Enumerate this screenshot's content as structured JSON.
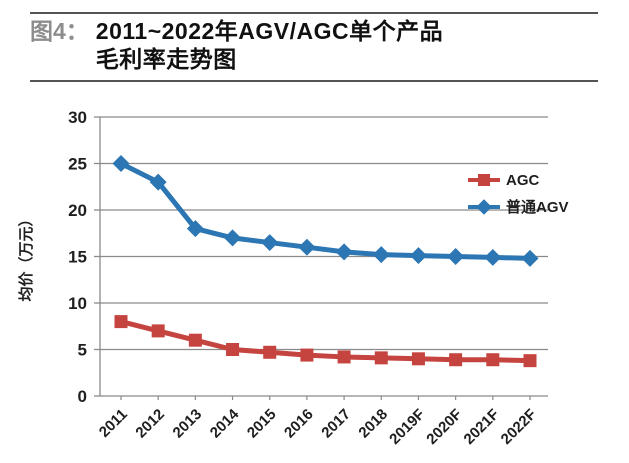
{
  "figure": {
    "label": "图4：",
    "title_line1": "2011~2022年AGV/AGC单个产品",
    "title_line2": "毛利率走势图"
  },
  "chart_data": {
    "type": "line",
    "categories": [
      "2011",
      "2012",
      "2013",
      "2014",
      "2015",
      "2016",
      "2017",
      "2018",
      "2019F",
      "2020F",
      "2021F",
      "2022F"
    ],
    "series": [
      {
        "name": "AGC",
        "color": "#c6443f",
        "marker": "square",
        "values": [
          8,
          7,
          6,
          5,
          4.7,
          4.4,
          4.2,
          4.1,
          4.0,
          3.9,
          3.9,
          3.8
        ]
      },
      {
        "name": "普通AGV",
        "color": "#2b76b3",
        "marker": "diamond",
        "values": [
          25,
          23,
          18,
          17,
          16.5,
          16,
          15.5,
          15.2,
          15.1,
          15.0,
          14.9,
          14.8
        ]
      }
    ],
    "ylabel": "均价（万元）",
    "ylim": [
      0,
      30
    ],
    "ytick_step": 5,
    "grid": true,
    "legend_position": "upper-right",
    "axis_color": "#8a8a8a",
    "text_color": "#1f1f1f"
  }
}
